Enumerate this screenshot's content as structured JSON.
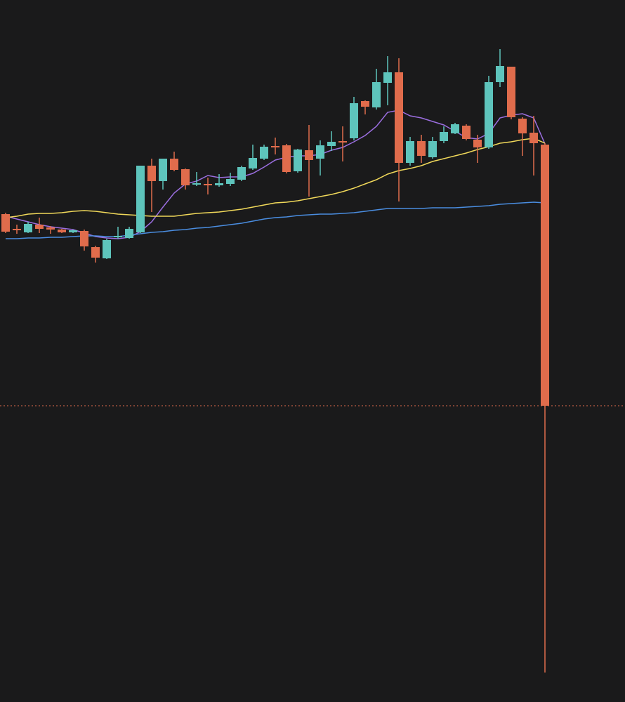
{
  "chart_data": {
    "type": "candlestick",
    "up_color": "#5ec4bc",
    "down_color": "#e06c4c",
    "ylim": [
      0,
      1000
    ],
    "open": [
      695,
      674,
      669,
      680,
      676,
      673,
      669,
      671,
      648,
      632,
      662,
      661,
      669,
      764,
      742,
      774,
      759,
      737,
      738,
      736,
      738,
      744,
      760,
      774,
      792,
      793,
      756,
      786,
      774,
      792,
      799,
      803,
      856,
      847,
      882,
      897,
      768,
      799,
      776,
      799,
      810,
      821,
      801,
      790,
      883,
      905,
      831,
      811,
      794
    ],
    "high": [
      697,
      680,
      684,
      690,
      678,
      674,
      673,
      673,
      650,
      660,
      677,
      677,
      764,
      774,
      774,
      784,
      760,
      755,
      747,
      752,
      754,
      764,
      794,
      794,
      804,
      795,
      788,
      822,
      800,
      813,
      820,
      862,
      857,
      902,
      920,
      917,
      805,
      808,
      805,
      820,
      825,
      823,
      808,
      892,
      930,
      905,
      833,
      835,
      796
    ],
    "low": [
      668,
      667,
      668,
      668,
      667,
      668,
      668,
      643,
      626,
      631,
      660,
      660,
      668,
      698,
      730,
      756,
      730,
      735,
      723,
      734,
      735,
      742,
      758,
      772,
      780,
      753,
      754,
      720,
      750,
      785,
      770,
      800,
      837,
      844,
      850,
      713,
      764,
      768,
      774,
      796,
      809,
      800,
      768,
      788,
      876,
      830,
      778,
      750,
      42
    ],
    "close": [
      670,
      672,
      681,
      674,
      673,
      669,
      672,
      649,
      633,
      658,
      664,
      674,
      764,
      742,
      774,
      758,
      736,
      739,
      736,
      739,
      745,
      762,
      775,
      791,
      790,
      755,
      787,
      772,
      793,
      798,
      797,
      853,
      848,
      883,
      897,
      768,
      799,
      778,
      799,
      812,
      823,
      802,
      790,
      883,
      906,
      833,
      810,
      796,
      422
    ],
    "series": [
      {
        "color": "#9b6ee0",
        "values": [
          692,
          688,
          684,
          680,
          677,
          675,
          673,
          668,
          663,
          661,
          660,
          662,
          670,
          684,
          705,
          725,
          738,
          742,
          750,
          747,
          748,
          748,
          753,
          762,
          772,
          776,
          778,
          778,
          780,
          786,
          790,
          798,
          807,
          820,
          840,
          843,
          835,
          832,
          827,
          822,
          813,
          804,
          802,
          810,
          832,
          836,
          838,
          832,
          795
        ]
      },
      {
        "color": "#f0d85a",
        "values": [
          690,
          692,
          695,
          696,
          696,
          697,
          699,
          700,
          699,
          697,
          695,
          694,
          693,
          692,
          692,
          692,
          694,
          696,
          697,
          698,
          700,
          702,
          705,
          708,
          711,
          712,
          714,
          717,
          720,
          723,
          727,
          732,
          738,
          744,
          752,
          757,
          760,
          764,
          770,
          774,
          778,
          782,
          787,
          791,
          796,
          798,
          801,
          803,
          796
        ]
      },
      {
        "color": "#4a8de0",
        "values": [
          660,
          660,
          661,
          661,
          662,
          662,
          663,
          664,
          664,
          663,
          663,
          665,
          667,
          669,
          670,
          672,
          673,
          675,
          676,
          678,
          680,
          682,
          685,
          688,
          690,
          691,
          693,
          694,
          695,
          695,
          696,
          697,
          699,
          701,
          703,
          703,
          703,
          703,
          704,
          704,
          704,
          705,
          706,
          707,
          709,
          710,
          711,
          712,
          711
        ]
      }
    ],
    "price_line": true
  }
}
